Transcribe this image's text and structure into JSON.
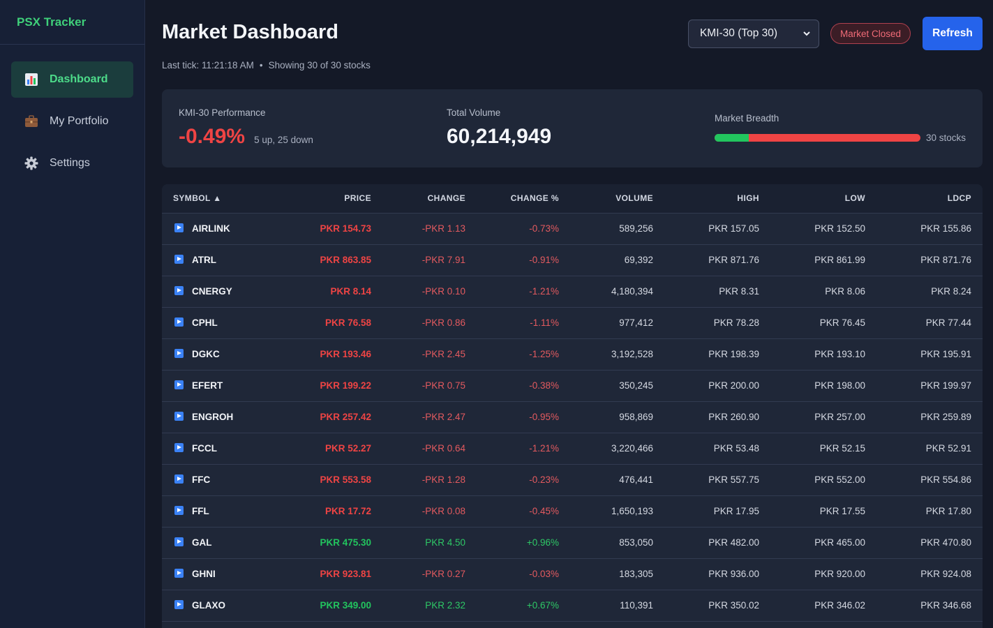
{
  "app": {
    "brand": "PSX Tracker"
  },
  "sidebar": {
    "items": [
      {
        "label": "Dashboard",
        "icon": "bar-chart-icon",
        "active": true
      },
      {
        "label": "My Portfolio",
        "icon": "briefcase-icon",
        "active": false
      },
      {
        "label": "Settings",
        "icon": "gear-icon",
        "active": false
      }
    ]
  },
  "header": {
    "title": "Market Dashboard",
    "last_tick": "Last tick: 11:21:18 AM",
    "separator": "•",
    "showing": "Showing 30 of 30 stocks",
    "index_select": "KMI-30 (Top 30)",
    "market_status": "Market Closed",
    "refresh_label": "Refresh"
  },
  "stats": {
    "performance_label": "KMI-30 Performance",
    "performance_value": "-0.49%",
    "performance_sub": "5 up, 25 down",
    "volume_label": "Total Volume",
    "volume_value": "60,214,949",
    "breadth_label": "Market Breadth",
    "breadth_up_fraction": 0.1667,
    "breadth_count": "30 stocks"
  },
  "colors": {
    "accent": "#2563eb",
    "brand": "#3fd07a",
    "up": "#22c55e",
    "down": "#ef4444",
    "background": "#141927"
  },
  "table": {
    "sort_indicator": "▲",
    "columns": [
      "SYMBOL",
      "PRICE",
      "CHANGE",
      "CHANGE %",
      "VOLUME",
      "HIGH",
      "LOW",
      "LDCP"
    ],
    "rows": [
      {
        "symbol": "AIRLINK",
        "price": "PKR 154.73",
        "change": "-PKR 1.13",
        "change_pct": "-0.73%",
        "volume": "589,256",
        "high": "PKR 157.05",
        "low": "PKR 152.50",
        "ldcp": "PKR 155.86",
        "dir": "down"
      },
      {
        "symbol": "ATRL",
        "price": "PKR 863.85",
        "change": "-PKR 7.91",
        "change_pct": "-0.91%",
        "volume": "69,392",
        "high": "PKR 871.76",
        "low": "PKR 861.99",
        "ldcp": "PKR 871.76",
        "dir": "down"
      },
      {
        "symbol": "CNERGY",
        "price": "PKR 8.14",
        "change": "-PKR 0.10",
        "change_pct": "-1.21%",
        "volume": "4,180,394",
        "high": "PKR 8.31",
        "low": "PKR 8.06",
        "ldcp": "PKR 8.24",
        "dir": "down"
      },
      {
        "symbol": "CPHL",
        "price": "PKR 76.58",
        "change": "-PKR 0.86",
        "change_pct": "-1.11%",
        "volume": "977,412",
        "high": "PKR 78.28",
        "low": "PKR 76.45",
        "ldcp": "PKR 77.44",
        "dir": "down"
      },
      {
        "symbol": "DGKC",
        "price": "PKR 193.46",
        "change": "-PKR 2.45",
        "change_pct": "-1.25%",
        "volume": "3,192,528",
        "high": "PKR 198.39",
        "low": "PKR 193.10",
        "ldcp": "PKR 195.91",
        "dir": "down"
      },
      {
        "symbol": "EFERT",
        "price": "PKR 199.22",
        "change": "-PKR 0.75",
        "change_pct": "-0.38%",
        "volume": "350,245",
        "high": "PKR 200.00",
        "low": "PKR 198.00",
        "ldcp": "PKR 199.97",
        "dir": "down"
      },
      {
        "symbol": "ENGROH",
        "price": "PKR 257.42",
        "change": "-PKR 2.47",
        "change_pct": "-0.95%",
        "volume": "958,869",
        "high": "PKR 260.90",
        "low": "PKR 257.00",
        "ldcp": "PKR 259.89",
        "dir": "down"
      },
      {
        "symbol": "FCCL",
        "price": "PKR 52.27",
        "change": "-PKR 0.64",
        "change_pct": "-1.21%",
        "volume": "3,220,466",
        "high": "PKR 53.48",
        "low": "PKR 52.15",
        "ldcp": "PKR 52.91",
        "dir": "down"
      },
      {
        "symbol": "FFC",
        "price": "PKR 553.58",
        "change": "-PKR 1.28",
        "change_pct": "-0.23%",
        "volume": "476,441",
        "high": "PKR 557.75",
        "low": "PKR 552.00",
        "ldcp": "PKR 554.86",
        "dir": "down"
      },
      {
        "symbol": "FFL",
        "price": "PKR 17.72",
        "change": "-PKR 0.08",
        "change_pct": "-0.45%",
        "volume": "1,650,193",
        "high": "PKR 17.95",
        "low": "PKR 17.55",
        "ldcp": "PKR 17.80",
        "dir": "down"
      },
      {
        "symbol": "GAL",
        "price": "PKR 475.30",
        "change": "PKR 4.50",
        "change_pct": "+0.96%",
        "volume": "853,050",
        "high": "PKR 482.00",
        "low": "PKR 465.00",
        "ldcp": "PKR 470.80",
        "dir": "up"
      },
      {
        "symbol": "GHNI",
        "price": "PKR 923.81",
        "change": "-PKR 0.27",
        "change_pct": "-0.03%",
        "volume": "183,305",
        "high": "PKR 936.00",
        "low": "PKR 920.00",
        "ldcp": "PKR 924.08",
        "dir": "down"
      },
      {
        "symbol": "GLAXO",
        "price": "PKR 349.00",
        "change": "PKR 2.32",
        "change_pct": "+0.67%",
        "volume": "110,391",
        "high": "PKR 350.02",
        "low": "PKR 346.02",
        "ldcp": "PKR 346.68",
        "dir": "up"
      }
    ]
  }
}
